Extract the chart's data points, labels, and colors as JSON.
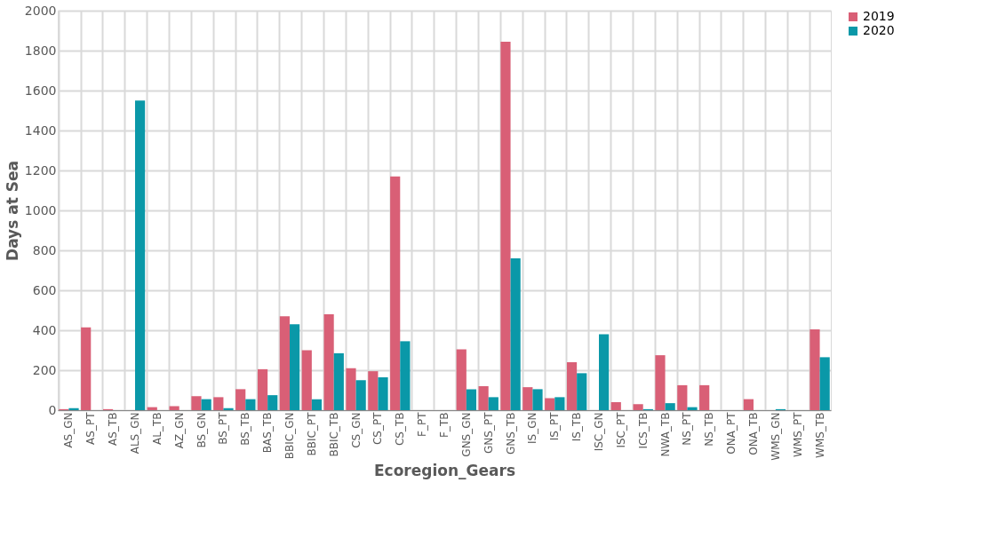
{
  "chart_data": {
    "type": "bar",
    "xlabel": "Ecoregion_Gears",
    "ylabel": "Days at Sea",
    "categories": [
      "AS_GN",
      "AS_PT",
      "AS_TB",
      "ALS_GN",
      "AL_TB",
      "AZ_GN",
      "BS_GN",
      "BS_PT",
      "BS_TB",
      "BAS_TB",
      "BBIC_GN",
      "BBIC_PT",
      "BBIC_TB",
      "CS_GN",
      "CS_PT",
      "CS_TB",
      "F_PT",
      "F_TB",
      "GNS_GN",
      "GNS_PT",
      "GNS_TB",
      "IS_GN",
      "IS_PT",
      "IS_TB",
      "ISC_GN",
      "ISC_PT",
      "ICS_TB",
      "NWA_TB",
      "NS_PT",
      "NS_TB",
      "ONA_PT",
      "ONA_TB",
      "WMS_GN",
      "WMS_PT",
      "WMS_TB"
    ],
    "series": [
      {
        "name": "2019",
        "color": "#d95f76",
        "values": [
          5,
          415,
          5,
          0,
          15,
          20,
          70,
          65,
          105,
          205,
          470,
          300,
          480,
          210,
          195,
          1170,
          0,
          0,
          305,
          120,
          1845,
          115,
          60,
          240,
          0,
          40,
          30,
          275,
          125,
          125,
          0,
          55,
          0,
          0,
          405
        ]
      },
      {
        "name": "2020",
        "color": "#0a98a8",
        "values": [
          10,
          0,
          0,
          1550,
          0,
          0,
          55,
          10,
          55,
          75,
          430,
          55,
          285,
          150,
          165,
          345,
          0,
          0,
          105,
          65,
          760,
          105,
          65,
          185,
          380,
          0,
          5,
          35,
          15,
          0,
          0,
          0,
          5,
          0,
          265
        ]
      }
    ],
    "ylim": [
      0,
      2000
    ],
    "yticks": [
      0,
      200,
      400,
      600,
      800,
      1000,
      1200,
      1400,
      1600,
      1800,
      2000
    ],
    "grid": true,
    "legend": "right"
  }
}
